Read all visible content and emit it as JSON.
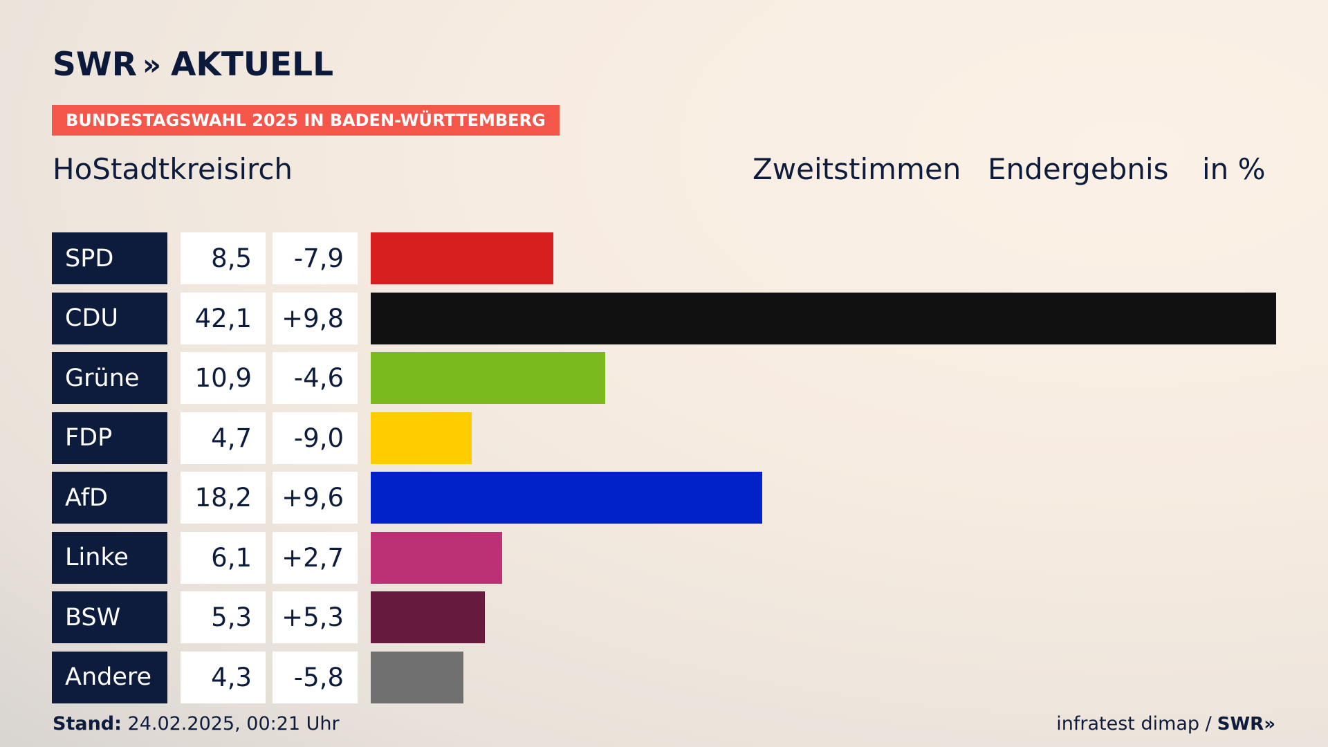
{
  "brand": {
    "logo_text": "SWR",
    "logo_chevrons": "»",
    "logo_suffix": "AKTUELL"
  },
  "banner": "BUNDESTAGSWAHL 2025 IN BADEN-WÜRTTEMBERG",
  "region": "HoStadtkreisirch",
  "header": {
    "vote_type": "Zweitstimmen",
    "status": "Endergebnis",
    "unit": "in %"
  },
  "footer": {
    "stand_label": "Stand:",
    "stand_value": "24.02.2025, 00:21 Uhr",
    "source": "infratest dimap /",
    "source_brand": "SWR»"
  },
  "chart_data": {
    "type": "bar",
    "orientation": "horizontal",
    "categories": [
      "SPD",
      "CDU",
      "Grüne",
      "FDP",
      "AfD",
      "Linke",
      "BSW",
      "Andere"
    ],
    "values": [
      8.5,
      42.1,
      10.9,
      4.7,
      18.2,
      6.1,
      5.3,
      4.3
    ],
    "value_labels": [
      "8,5",
      "42,1",
      "10,9",
      "4,7",
      "18,2",
      "6,1",
      "5,3",
      "4,3"
    ],
    "diff_labels": [
      "-7,9",
      "+9,8",
      "-4,6",
      "-9,0",
      "+9,6",
      "+2,7",
      "+5,3",
      "-5,8"
    ],
    "colors": [
      "#d81f1f",
      "#111111",
      "#7aba1e",
      "#ffcc00",
      "#0021c8",
      "#bc3076",
      "#661a3d",
      "#707070"
    ],
    "xlim": [
      0,
      42.1
    ]
  }
}
